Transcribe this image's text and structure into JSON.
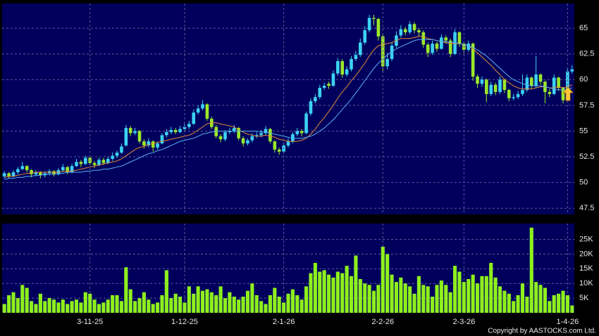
{
  "chart_data": [
    {
      "type": "candlestick",
      "up_color": "#3cd2f2",
      "down_color": "#9be82a",
      "grid": true,
      "ylim": [
        46.9,
        67.4
      ],
      "yticks": [
        47.5,
        50,
        52.5,
        55,
        57.5,
        60,
        62.5,
        65
      ],
      "open": [
        50.6,
        50.9,
        50.6,
        51.0,
        51.3,
        51.6,
        51.2,
        50.8,
        51.0,
        50.7,
        50.9,
        51.1,
        50.8,
        51.2,
        51.5,
        51.0,
        51.6,
        52.0,
        51.8,
        52.4,
        51.9,
        51.7,
        52.2,
        51.9,
        52.3,
        52.6,
        52.9,
        53.6,
        55.3,
        54.8,
        55.0,
        54.0,
        53.6,
        54.0,
        53.4,
        53.8,
        54.6,
        54.9,
        55.1,
        54.9,
        55.2,
        55.4,
        55.7,
        56.8,
        57.2,
        57.6,
        56.2,
        55.4,
        54.5,
        54.2,
        54.9,
        55.0,
        55.3,
        54.3,
        53.8,
        54.1,
        54.5,
        54.6,
        54.8,
        55.2,
        54.0,
        53.2,
        53.0,
        53.6,
        54.0,
        54.7,
        55.0,
        54.8,
        56.7,
        57.9,
        58.3,
        59.2,
        59.6,
        59.4,
        60.6,
        61.8,
        60.5,
        61.0,
        62.0,
        62.4,
        63.6,
        64.8,
        66.0,
        65.9,
        64.2,
        61.3,
        62.0,
        63.3,
        64.3,
        64.9,
        64.6,
        65.4,
        64.8,
        64.6,
        63.4,
        62.6,
        63.5,
        63.0,
        64.1,
        63.8,
        62.5,
        64.6,
        63.5,
        62.9,
        63.5,
        60.3,
        59.6,
        60.0,
        58.6,
        59.5,
        58.8,
        60.0,
        59.0,
        58.2,
        58.3,
        58.6,
        59.0,
        60.2,
        59.4,
        60.5,
        59.8,
        58.8,
        58.6,
        60.2,
        59.2,
        58.0,
        60.8
      ],
      "high": [
        51.1,
        51.0,
        51.2,
        51.5,
        52.0,
        51.7,
        51.3,
        51.2,
        51.1,
        51.1,
        51.3,
        51.2,
        51.4,
        51.8,
        51.6,
        51.8,
        52.3,
        52.2,
        52.6,
        52.5,
        52.1,
        52.4,
        52.4,
        52.5,
        52.9,
        53.1,
        53.8,
        55.6,
        55.5,
        55.3,
        55.1,
        54.2,
        54.3,
        54.1,
        54.0,
        54.8,
        55.2,
        55.4,
        55.3,
        55.5,
        55.7,
        56.0,
        57.1,
        57.5,
        58.0,
        57.7,
        56.4,
        55.6,
        54.7,
        55.1,
        55.3,
        55.6,
        55.4,
        54.5,
        54.3,
        54.8,
        54.9,
        55.1,
        55.5,
        55.3,
        54.1,
        53.4,
        53.9,
        54.3,
        54.9,
        55.3,
        55.2,
        56.9,
        58.2,
        58.6,
        59.5,
        59.7,
        59.8,
        60.9,
        62.1,
        62.0,
        61.3,
        62.3,
        62.8,
        64.0,
        65.2,
        66.3,
        66.3,
        66.0,
        64.4,
        62.6,
        63.6,
        64.7,
        65.3,
        65.1,
        65.7,
        65.6,
        65.0,
        64.8,
        63.6,
        63.8,
        63.7,
        64.4,
        64.3,
        64.0,
        64.9,
        64.7,
        63.7,
        63.8,
        63.6,
        60.5,
        60.3,
        60.1,
        59.8,
        59.7,
        60.3,
        60.1,
        59.1,
        58.6,
        58.9,
        60.5,
        60.5,
        60.3,
        62.3,
        60.6,
        59.9,
        59.1,
        60.5,
        60.3,
        59.3,
        61.1,
        61.4
      ],
      "low": [
        50.4,
        50.4,
        50.5,
        50.8,
        51.2,
        51.0,
        50.5,
        50.6,
        50.4,
        50.5,
        50.7,
        50.6,
        50.7,
        51.0,
        50.8,
        50.9,
        51.5,
        51.5,
        51.7,
        51.7,
        51.4,
        51.6,
        51.7,
        51.8,
        52.1,
        52.4,
        52.8,
        53.5,
        54.5,
        54.6,
        53.8,
        53.3,
        53.4,
        53.0,
        53.2,
        53.7,
        54.4,
        54.7,
        54.7,
        54.8,
        55.0,
        55.2,
        55.6,
        56.6,
        57.0,
        56.0,
        55.2,
        54.3,
        53.9,
        54.0,
        54.7,
        54.8,
        54.1,
        53.5,
        53.6,
        53.9,
        54.3,
        54.4,
        54.6,
        53.8,
        52.9,
        52.7,
        52.8,
        53.4,
        53.8,
        54.5,
        54.5,
        54.7,
        56.5,
        57.7,
        58.1,
        59.0,
        59.1,
        59.3,
        60.4,
        60.2,
        60.3,
        60.8,
        61.8,
        62.2,
        63.4,
        64.6,
        65.3,
        63.8,
        60.8,
        61.0,
        61.8,
        63.1,
        64.1,
        64.3,
        64.4,
        64.5,
        64.2,
        63.1,
        62.2,
        62.4,
        62.7,
        62.9,
        63.5,
        62.2,
        62.4,
        63.2,
        62.6,
        62.7,
        59.9,
        59.2,
        59.3,
        57.8,
        58.4,
        58.5,
        58.6,
        58.7,
        57.9,
        58.0,
        58.1,
        58.4,
        58.8,
        59.1,
        59.2,
        59.5,
        57.7,
        58.3,
        58.5,
        58.9,
        57.7,
        57.9,
        60.6
      ],
      "close": [
        50.9,
        50.6,
        51.0,
        51.3,
        51.6,
        51.2,
        50.8,
        51.0,
        50.7,
        50.9,
        51.1,
        50.8,
        51.2,
        51.5,
        51.0,
        51.6,
        52.0,
        51.8,
        52.4,
        51.9,
        51.7,
        52.2,
        51.9,
        52.3,
        52.6,
        52.9,
        53.5,
        55.3,
        54.8,
        55.0,
        54.0,
        53.6,
        54.0,
        53.4,
        53.8,
        54.6,
        54.9,
        55.1,
        54.9,
        55.2,
        55.4,
        55.7,
        56.8,
        57.2,
        57.6,
        56.2,
        55.4,
        54.5,
        54.2,
        54.9,
        55.0,
        55.3,
        54.3,
        53.8,
        54.1,
        54.5,
        54.6,
        54.8,
        55.2,
        54.0,
        53.2,
        53.0,
        53.6,
        54.0,
        54.7,
        55.0,
        54.8,
        56.7,
        57.9,
        58.3,
        59.2,
        59.4,
        59.4,
        60.6,
        61.8,
        60.5,
        61.0,
        62.0,
        62.4,
        63.6,
        64.8,
        66.0,
        65.9,
        64.2,
        61.3,
        62.0,
        63.3,
        64.3,
        64.9,
        64.6,
        65.4,
        64.8,
        64.6,
        63.4,
        62.6,
        63.5,
        63.0,
        64.1,
        63.8,
        62.5,
        64.6,
        63.5,
        62.9,
        63.5,
        60.3,
        59.6,
        60.0,
        58.6,
        59.5,
        58.8,
        60.0,
        59.0,
        58.2,
        58.3,
        58.6,
        59.0,
        60.2,
        59.4,
        60.5,
        59.8,
        58.8,
        58.6,
        60.2,
        59.2,
        58.0,
        60.8,
        61.0
      ],
      "series": [
        {
          "color": "#e58a35",
          "values": [
            50.5,
            50.6,
            50.6,
            50.7,
            50.8,
            50.9,
            50.9,
            51.0,
            51.0,
            51.0,
            51.0,
            51.0,
            51.0,
            51.1,
            51.1,
            51.1,
            51.2,
            51.3,
            51.4,
            51.5,
            51.6,
            51.7,
            51.8,
            51.9,
            52.0,
            52.1,
            52.3,
            52.6,
            52.9,
            53.2,
            53.4,
            53.5,
            53.7,
            53.8,
            53.9,
            54.0,
            54.1,
            54.2,
            54.3,
            54.4,
            54.5,
            54.6,
            54.8,
            55.1,
            55.4,
            55.7,
            55.8,
            55.8,
            55.7,
            55.6,
            55.5,
            55.4,
            55.1,
            54.9,
            54.7,
            54.6,
            54.5,
            54.5,
            54.6,
            54.5,
            54.4,
            54.2,
            54.1,
            54.0,
            54.0,
            54.0,
            54.1,
            54.3,
            54.7,
            55.2,
            55.8,
            56.3,
            56.9,
            57.5,
            58.2,
            58.8,
            59.3,
            59.9,
            60.4,
            61.0,
            61.6,
            62.3,
            62.9,
            63.3,
            63.4,
            63.5,
            63.6,
            63.8,
            64.0,
            64.0,
            64.0,
            64.1,
            64.2,
            64.2,
            64.0,
            63.9,
            63.8,
            63.7,
            63.6,
            63.5,
            63.5,
            63.5,
            63.4,
            63.3,
            63.0,
            62.6,
            62.2,
            61.8,
            61.4,
            60.9,
            60.5,
            60.0,
            59.7,
            59.4,
            59.2,
            59.1,
            59.1,
            59.1,
            59.2,
            59.3,
            59.3,
            59.2,
            59.2,
            59.3,
            59.2,
            59.3,
            59.5
          ]
        },
        {
          "color": "#5ab0f2",
          "values": [
            50.3,
            50.4,
            50.4,
            50.5,
            50.5,
            50.6,
            50.6,
            50.7,
            50.7,
            50.8,
            50.8,
            50.8,
            50.9,
            50.9,
            51.0,
            51.0,
            51.0,
            51.0,
            51.1,
            51.1,
            51.2,
            51.2,
            51.3,
            51.3,
            51.4,
            51.5,
            51.6,
            51.8,
            52.0,
            52.2,
            52.4,
            52.6,
            52.8,
            52.9,
            53.1,
            53.2,
            53.4,
            53.6,
            53.8,
            54.0,
            54.1,
            54.2,
            54.3,
            54.5,
            54.7,
            54.8,
            54.9,
            55.0,
            55.0,
            55.0,
            55.0,
            55.0,
            55.0,
            55.0,
            55.0,
            55.0,
            55.0,
            54.9,
            54.9,
            54.8,
            54.7,
            54.6,
            54.5,
            54.4,
            54.3,
            54.3,
            54.3,
            54.4,
            54.5,
            54.7,
            55.0,
            55.3,
            55.7,
            56.1,
            56.6,
            57.1,
            57.6,
            58.1,
            58.7,
            59.3,
            59.9,
            60.5,
            61.1,
            61.6,
            62.0,
            62.4,
            62.7,
            63.0,
            63.2,
            63.4,
            63.6,
            63.8,
            63.9,
            63.9,
            63.9,
            63.9,
            63.8,
            63.7,
            63.7,
            63.6,
            63.6,
            63.5,
            63.4,
            63.3,
            63.1,
            62.9,
            62.6,
            62.3,
            61.9,
            61.5,
            61.1,
            60.7,
            60.3,
            60.0,
            59.8,
            59.6,
            59.5,
            59.4,
            59.4,
            59.4,
            59.3,
            59.2,
            59.1,
            59.0,
            59.0,
            59.1,
            59.2
          ]
        }
      ]
    },
    {
      "type": "bar",
      "color": "#8ef01c",
      "grid": true,
      "ylim": [
        0,
        30400
      ],
      "yticks": [
        {
          "value": 5000,
          "label": "5K"
        },
        {
          "value": 10000,
          "label": "10K"
        },
        {
          "value": 15000,
          "label": "15K"
        },
        {
          "value": 20000,
          "label": "20K"
        },
        {
          "value": 25000,
          "label": "25K"
        }
      ],
      "categories": [
        null,
        null,
        null,
        null,
        null,
        null,
        null,
        null,
        null,
        null,
        null,
        null,
        null,
        null,
        null,
        null,
        null,
        null,
        null,
        "3-11-25",
        null,
        null,
        null,
        null,
        null,
        null,
        null,
        null,
        null,
        null,
        null,
        null,
        null,
        null,
        null,
        null,
        null,
        null,
        null,
        null,
        "1-12-25",
        null,
        null,
        null,
        null,
        null,
        null,
        null,
        null,
        null,
        null,
        null,
        null,
        null,
        null,
        null,
        null,
        null,
        null,
        null,
        null,
        null,
        "2-1-26",
        null,
        null,
        null,
        null,
        null,
        null,
        null,
        null,
        null,
        null,
        null,
        null,
        null,
        null,
        null,
        null,
        null,
        null,
        null,
        null,
        null,
        "2-2-26",
        null,
        null,
        null,
        null,
        null,
        null,
        null,
        null,
        null,
        null,
        null,
        null,
        null,
        null,
        null,
        null,
        null,
        "2-3-26",
        null,
        null,
        null,
        null,
        null,
        null,
        null,
        null,
        null,
        null,
        null,
        null,
        null,
        null,
        null,
        null,
        null,
        null,
        null,
        null,
        null,
        null,
        "1-4-26",
        null
      ],
      "values": [
        3000,
        6000,
        7000,
        5000,
        9500,
        8500,
        4000,
        3000,
        6500,
        4000,
        5000,
        4500,
        3500,
        4500,
        3000,
        4000,
        4500,
        3500,
        7000,
        6500,
        4500,
        3000,
        3500,
        4500,
        6000,
        6000,
        4000,
        15500,
        8000,
        4000,
        5000,
        7000,
        4500,
        3000,
        3500,
        6000,
        14500,
        5000,
        6500,
        5500,
        3500,
        9000,
        6500,
        9000,
        7500,
        8000,
        7000,
        6000,
        9000,
        5000,
        7000,
        5500,
        4500,
        5500,
        7500,
        10000,
        6000,
        4000,
        3000,
        6000,
        8500,
        5500,
        3500,
        6500,
        8000,
        6000,
        4500,
        9000,
        13500,
        17000,
        14000,
        14500,
        13000,
        12000,
        14000,
        13500,
        16000,
        12500,
        19500,
        11500,
        10000,
        9500,
        7500,
        9500,
        22500,
        20000,
        13000,
        10500,
        12000,
        10000,
        9000,
        6500,
        12500,
        9500,
        9000,
        5500,
        9500,
        11000,
        9500,
        7000,
        16000,
        14000,
        10500,
        11500,
        13000,
        10000,
        12500,
        12500,
        17000,
        12000,
        9000,
        7500,
        6500,
        4000,
        6000,
        10000,
        5500,
        29000,
        10500,
        9500,
        8500,
        4000,
        6000,
        6500,
        7500,
        6000,
        2500
      ]
    }
  ],
  "copyright": "Copyright by AASTOCKS.com Ltd."
}
